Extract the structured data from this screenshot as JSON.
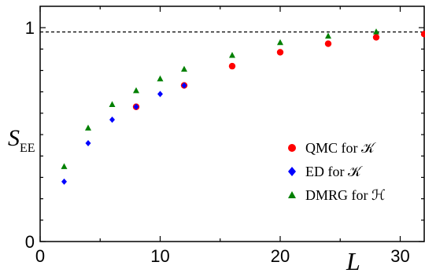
{
  "chart_data": {
    "type": "scatter",
    "xlabel": "L",
    "ylabel": "S",
    "ylabel_subscript": "EE",
    "xlim": [
      0,
      32
    ],
    "ylim": [
      0,
      1.1
    ],
    "x_ticks": [
      0,
      10,
      20,
      30
    ],
    "y_ticks": [
      0,
      1
    ],
    "reference_line": {
      "y": 0.98,
      "style": "dashed"
    },
    "legend_position": "bottom-right",
    "series": [
      {
        "name": "QMC for 𝒦",
        "marker": "circle",
        "color": "#ff0000",
        "x": [
          8,
          12,
          16,
          20,
          24,
          28,
          32
        ],
        "y": [
          0.63,
          0.73,
          0.82,
          0.885,
          0.925,
          0.955,
          0.97
        ]
      },
      {
        "name": "ED for 𝒦",
        "marker": "diamond",
        "color": "#0000ff",
        "x": [
          2,
          4,
          6,
          8,
          10,
          12
        ],
        "y": [
          0.28,
          0.46,
          0.57,
          0.63,
          0.69,
          0.73
        ]
      },
      {
        "name": "DMRG for ℋ",
        "marker": "triangle",
        "color": "#008000",
        "x": [
          2,
          4,
          6,
          8,
          10,
          12,
          16,
          20,
          24,
          28
        ],
        "y": [
          0.35,
          0.53,
          0.64,
          0.705,
          0.76,
          0.805,
          0.87,
          0.93,
          0.96,
          0.98
        ]
      }
    ]
  }
}
